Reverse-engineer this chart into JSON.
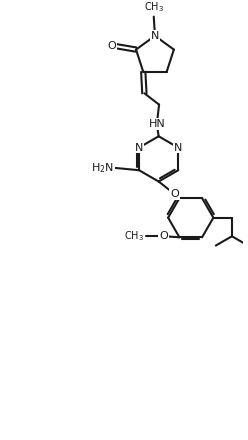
{
  "bg": "#ffffff",
  "lc": "#1a1a1a",
  "lw": 1.5,
  "fs": 8.0,
  "figsize": [
    2.48,
    4.4
  ],
  "dpi": 100,
  "xlim": [
    0.0,
    1.0
  ],
  "ylim": [
    0.0,
    1.77
  ]
}
